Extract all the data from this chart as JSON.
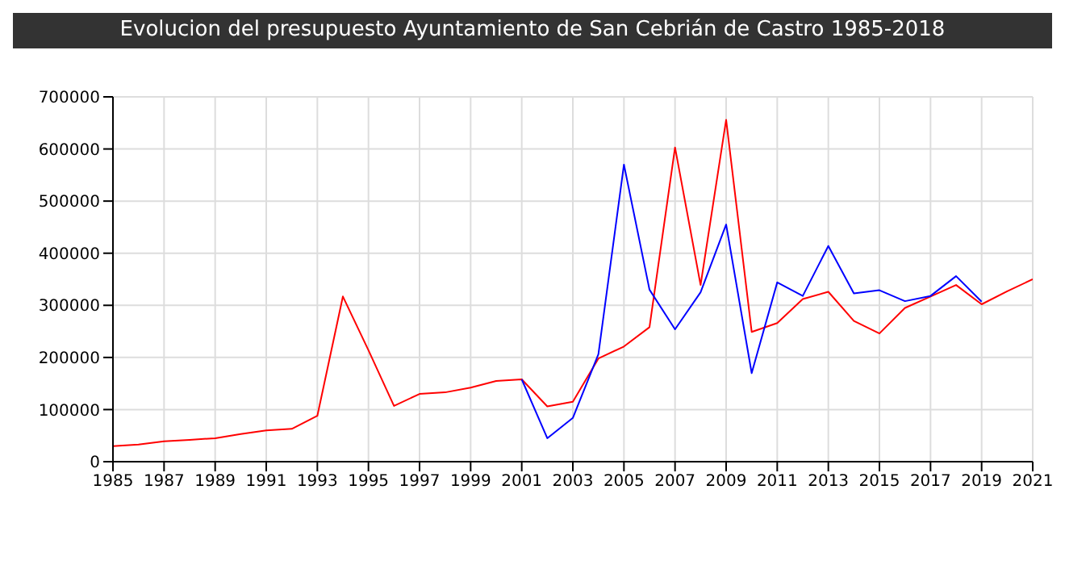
{
  "chart_data": {
    "type": "line",
    "title": "Evolucion del presupuesto Ayuntamiento de San Cebrián de Castro 1985-2018",
    "x": [
      1985,
      1986,
      1987,
      1988,
      1989,
      1990,
      1991,
      1992,
      1993,
      1994,
      1995,
      1996,
      1997,
      1998,
      1999,
      2000,
      2001,
      2002,
      2003,
      2004,
      2005,
      2006,
      2007,
      2008,
      2009,
      2010,
      2011,
      2012,
      2013,
      2014,
      2015,
      2016,
      2017,
      2018,
      2019,
      2020,
      2021
    ],
    "series": [
      {
        "color": "#ff0000",
        "values": [
          30000,
          33000,
          39000,
          42000,
          45000,
          53000,
          60000,
          63000,
          88000,
          317000,
          214000,
          107000,
          130000,
          133000,
          142000,
          155000,
          158000,
          106000,
          115000,
          198000,
          221000,
          258000,
          603000,
          339000,
          656000,
          249000,
          266000,
          312000,
          326000,
          270000,
          246000,
          295000,
          317000,
          339000,
          302000,
          327000,
          350000
        ]
      },
      {
        "color": "#0000ff",
        "values": [
          null,
          null,
          null,
          null,
          null,
          null,
          null,
          null,
          null,
          null,
          null,
          null,
          null,
          null,
          null,
          null,
          158000,
          45000,
          84000,
          206000,
          570000,
          330000,
          254000,
          325000,
          455000,
          170000,
          344000,
          318000,
          414000,
          323000,
          329000,
          308000,
          318000,
          356000,
          307000,
          null,
          null
        ]
      }
    ],
    "xlim": [
      1985,
      2021
    ],
    "xticks": [
      1985,
      1987,
      1989,
      1991,
      1993,
      1995,
      1997,
      1999,
      2001,
      2003,
      2005,
      2007,
      2009,
      2011,
      2013,
      2015,
      2017,
      2019,
      2021
    ],
    "ylim": [
      0,
      700000
    ],
    "yticks": [
      0,
      100000,
      200000,
      300000,
      400000,
      500000,
      600000,
      700000
    ],
    "grid": true,
    "marker": "none",
    "line_style": "solid"
  }
}
